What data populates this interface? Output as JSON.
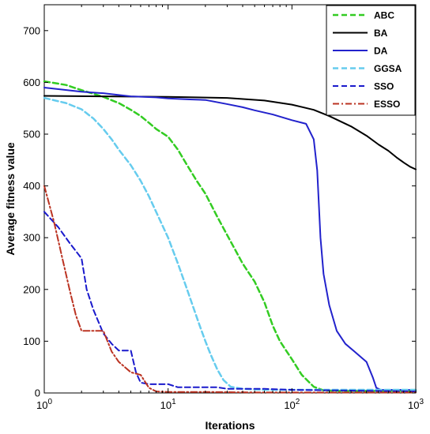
{
  "chart_data": {
    "type": "line",
    "xlabel": "Iterations",
    "ylabel": "Average fitness value",
    "x_scale": "log",
    "xlim": [
      1,
      1000
    ],
    "ylim": [
      0,
      750
    ],
    "x_ticks": [
      {
        "value": 1,
        "base": "10",
        "exp": "0"
      },
      {
        "value": 10,
        "base": "10",
        "exp": "1"
      },
      {
        "value": 100,
        "base": "10",
        "exp": "2"
      },
      {
        "value": 1000,
        "base": "10",
        "exp": "3"
      }
    ],
    "y_ticks": [
      0,
      100,
      200,
      300,
      400,
      500,
      600,
      700
    ],
    "grid": false,
    "legend_position": "top-right",
    "series": [
      {
        "name": "ABC",
        "color": "#33cc22",
        "dash": "dashed",
        "width": 2.5,
        "points": [
          [
            1,
            602
          ],
          [
            1.5,
            595
          ],
          [
            2,
            585
          ],
          [
            3,
            572
          ],
          [
            4,
            560
          ],
          [
            5,
            547
          ],
          [
            6,
            535
          ],
          [
            7,
            522
          ],
          [
            8,
            510
          ],
          [
            10,
            495
          ],
          [
            12,
            470
          ],
          [
            14,
            443
          ],
          [
            17,
            410
          ],
          [
            20,
            385
          ],
          [
            25,
            340
          ],
          [
            30,
            305
          ],
          [
            40,
            250
          ],
          [
            50,
            215
          ],
          [
            60,
            175
          ],
          [
            70,
            130
          ],
          [
            80,
            100
          ],
          [
            100,
            65
          ],
          [
            120,
            35
          ],
          [
            150,
            12
          ],
          [
            180,
            5
          ],
          [
            250,
            4
          ],
          [
            500,
            4
          ],
          [
            1000,
            4
          ]
        ]
      },
      {
        "name": "BA",
        "color": "#000000",
        "dash": "solid",
        "width": 2,
        "points": [
          [
            1,
            574
          ],
          [
            3,
            573
          ],
          [
            10,
            572
          ],
          [
            30,
            570
          ],
          [
            60,
            565
          ],
          [
            100,
            557
          ],
          [
            150,
            547
          ],
          [
            200,
            535
          ],
          [
            300,
            515
          ],
          [
            400,
            497
          ],
          [
            500,
            480
          ],
          [
            600,
            468
          ],
          [
            700,
            455
          ],
          [
            800,
            445
          ],
          [
            900,
            437
          ],
          [
            1000,
            432
          ]
        ]
      },
      {
        "name": "DA",
        "color": "#2222cc",
        "dash": "solid",
        "width": 2,
        "points": [
          [
            1,
            590
          ],
          [
            2,
            582
          ],
          [
            3,
            579
          ],
          [
            5,
            573
          ],
          [
            8,
            571
          ],
          [
            10,
            569
          ],
          [
            15,
            567
          ],
          [
            20,
            566
          ],
          [
            30,
            558
          ],
          [
            40,
            552
          ],
          [
            50,
            546
          ],
          [
            70,
            538
          ],
          [
            100,
            527
          ],
          [
            130,
            520
          ],
          [
            150,
            490
          ],
          [
            160,
            430
          ],
          [
            170,
            300
          ],
          [
            180,
            230
          ],
          [
            200,
            170
          ],
          [
            230,
            120
          ],
          [
            270,
            95
          ],
          [
            320,
            80
          ],
          [
            400,
            60
          ],
          [
            450,
            30
          ],
          [
            480,
            10
          ],
          [
            520,
            6
          ],
          [
            1000,
            6
          ]
        ]
      },
      {
        "name": "GGSA",
        "color": "#66ccee",
        "dash": "dashed",
        "width": 2.5,
        "points": [
          [
            1,
            570
          ],
          [
            1.5,
            560
          ],
          [
            2,
            548
          ],
          [
            2.5,
            530
          ],
          [
            3,
            510
          ],
          [
            3.5,
            490
          ],
          [
            4,
            470
          ],
          [
            5,
            440
          ],
          [
            6,
            410
          ],
          [
            7,
            380
          ],
          [
            8,
            350
          ],
          [
            10,
            300
          ],
          [
            12,
            250
          ],
          [
            14,
            205
          ],
          [
            16,
            165
          ],
          [
            18,
            130
          ],
          [
            20,
            100
          ],
          [
            22,
            75
          ],
          [
            25,
            45
          ],
          [
            28,
            25
          ],
          [
            32,
            12
          ],
          [
            40,
            8
          ],
          [
            60,
            6
          ],
          [
            100,
            6
          ],
          [
            200,
            6
          ],
          [
            1000,
            6
          ]
        ]
      },
      {
        "name": "SSO",
        "color": "#1a1acc",
        "dash": "dashed",
        "width": 2,
        "points": [
          [
            1,
            350
          ],
          [
            1.3,
            320
          ],
          [
            1.6,
            290
          ],
          [
            2,
            260
          ],
          [
            2.2,
            200
          ],
          [
            2.5,
            160
          ],
          [
            3,
            115
          ],
          [
            3.5,
            95
          ],
          [
            4,
            82
          ],
          [
            5,
            82
          ],
          [
            5.5,
            40
          ],
          [
            6,
            20
          ],
          [
            7,
            17
          ],
          [
            8,
            17
          ],
          [
            10,
            17
          ],
          [
            12,
            11
          ],
          [
            20,
            11
          ],
          [
            25,
            11
          ],
          [
            30,
            8
          ],
          [
            60,
            8
          ],
          [
            100,
            6
          ],
          [
            1000,
            3
          ]
        ]
      },
      {
        "name": "ESSO",
        "color": "#bb3322",
        "dash": "dashdot",
        "width": 2,
        "points": [
          [
            1,
            400
          ],
          [
            1.2,
            330
          ],
          [
            1.4,
            260
          ],
          [
            1.6,
            200
          ],
          [
            1.8,
            150
          ],
          [
            2,
            120
          ],
          [
            2.5,
            120
          ],
          [
            3,
            120
          ],
          [
            3.5,
            80
          ],
          [
            4,
            60
          ],
          [
            5,
            40
          ],
          [
            6,
            35
          ],
          [
            7,
            10
          ],
          [
            8,
            3
          ],
          [
            10,
            2
          ],
          [
            20,
            2
          ],
          [
            50,
            1
          ],
          [
            100,
            1
          ],
          [
            1000,
            1
          ]
        ]
      }
    ]
  }
}
